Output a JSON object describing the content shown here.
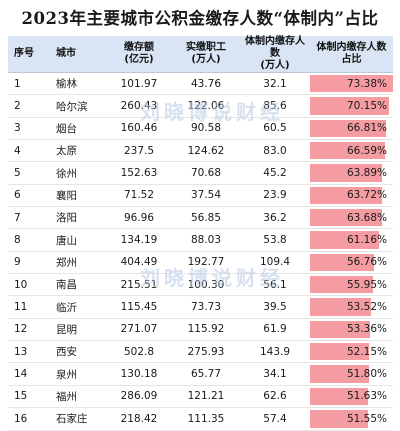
{
  "title": "2023年主要城市公积金缴存人数“体制内”占比",
  "watermark": "刘晓博说财经",
  "chart_data": {
    "type": "table",
    "columns": [
      {
        "label": "序号",
        "unit": ""
      },
      {
        "label": "城市",
        "unit": ""
      },
      {
        "label": "缴存额",
        "unit": "(亿元)"
      },
      {
        "label": "实缴职工",
        "unit": "(万人)"
      },
      {
        "label": "体制内缴存人数",
        "unit": "(万人)"
      },
      {
        "label": "体制内缴存人数",
        "unit": "占比"
      }
    ],
    "rows": [
      {
        "rank": "1",
        "city": "榆林",
        "deposit": "101.97",
        "workers": "43.76",
        "inside": "32.1",
        "ratio": "73.38%",
        "ratio_value": 73.38
      },
      {
        "rank": "2",
        "city": "哈尔滨",
        "deposit": "260.43",
        "workers": "122.06",
        "inside": "85.6",
        "ratio": "70.15%",
        "ratio_value": 70.15
      },
      {
        "rank": "3",
        "city": "烟台",
        "deposit": "160.46",
        "workers": "90.58",
        "inside": "60.5",
        "ratio": "66.81%",
        "ratio_value": 66.81
      },
      {
        "rank": "4",
        "city": "太原",
        "deposit": "237.5",
        "workers": "124.62",
        "inside": "83.0",
        "ratio": "66.59%",
        "ratio_value": 66.59
      },
      {
        "rank": "5",
        "city": "徐州",
        "deposit": "152.63",
        "workers": "70.68",
        "inside": "45.2",
        "ratio": "63.89%",
        "ratio_value": 63.89
      },
      {
        "rank": "6",
        "city": "襄阳",
        "deposit": "71.52",
        "workers": "37.54",
        "inside": "23.9",
        "ratio": "63.72%",
        "ratio_value": 63.72
      },
      {
        "rank": "7",
        "city": "洛阳",
        "deposit": "96.96",
        "workers": "56.85",
        "inside": "36.2",
        "ratio": "63.68%",
        "ratio_value": 63.68
      },
      {
        "rank": "8",
        "city": "唐山",
        "deposit": "134.19",
        "workers": "88.03",
        "inside": "53.8",
        "ratio": "61.16%",
        "ratio_value": 61.16
      },
      {
        "rank": "9",
        "city": "郑州",
        "deposit": "404.49",
        "workers": "192.77",
        "inside": "109.4",
        "ratio": "56.76%",
        "ratio_value": 56.76
      },
      {
        "rank": "10",
        "city": "南昌",
        "deposit": "215.51",
        "workers": "100.30",
        "inside": "56.1",
        "ratio": "55.95%",
        "ratio_value": 55.95
      },
      {
        "rank": "11",
        "city": "临沂",
        "deposit": "115.45",
        "workers": "73.73",
        "inside": "39.5",
        "ratio": "53.52%",
        "ratio_value": 53.52
      },
      {
        "rank": "12",
        "city": "昆明",
        "deposit": "271.07",
        "workers": "115.92",
        "inside": "61.9",
        "ratio": "53.36%",
        "ratio_value": 53.36
      },
      {
        "rank": "13",
        "city": "西安",
        "deposit": "502.8",
        "workers": "275.93",
        "inside": "143.9",
        "ratio": "52.15%",
        "ratio_value": 52.15
      },
      {
        "rank": "14",
        "city": "泉州",
        "deposit": "130.18",
        "workers": "65.77",
        "inside": "34.1",
        "ratio": "51.80%",
        "ratio_value": 51.8
      },
      {
        "rank": "15",
        "city": "福州",
        "deposit": "286.09",
        "workers": "121.21",
        "inside": "62.6",
        "ratio": "51.63%",
        "ratio_value": 51.63
      },
      {
        "rank": "16",
        "city": "石家庄",
        "deposit": "218.42",
        "workers": "111.35",
        "inside": "57.4",
        "ratio": "51.55%",
        "ratio_value": 51.55
      }
    ],
    "bar_color": "#f49ca2",
    "header_color": "#d9e5f4",
    "bar_scale_max": 73.38
  }
}
